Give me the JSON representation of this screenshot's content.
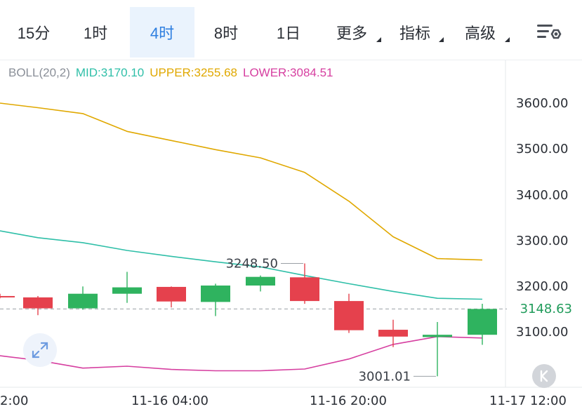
{
  "tabs": [
    {
      "label": "15分",
      "active": false,
      "dropdown": false
    },
    {
      "label": "1时",
      "active": false,
      "dropdown": false
    },
    {
      "label": "4时",
      "active": true,
      "dropdown": false
    },
    {
      "label": "8时",
      "active": false,
      "dropdown": false
    },
    {
      "label": "1日",
      "active": false,
      "dropdown": false
    },
    {
      "label": "更多",
      "active": false,
      "dropdown": true
    },
    {
      "label": "指标",
      "active": false,
      "dropdown": true
    },
    {
      "label": "高级",
      "active": false,
      "dropdown": true
    }
  ],
  "settings_icon": "chart-settings-icon",
  "legend": {
    "name": "BOLL(20,2)",
    "mid": "MID:3170.10",
    "upper": "UPPER:3255.68",
    "lower": "LOWER:3084.51"
  },
  "current_price": "3148.63",
  "expand_icon": "expand-arrows-icon",
  "back_icon": "k-back-icon",
  "colors": {
    "up": "#2fb35f",
    "down": "#e5414d",
    "mid": "#2fbfa8",
    "upper": "#e0a800",
    "lower": "#d63fa0",
    "active_tab": "#2e7fe0"
  },
  "chart_data": {
    "type": "candlestick",
    "title": "",
    "indicator": "BOLL(20,2)",
    "ylim": [
      3010,
      3660
    ],
    "y_ticks": [
      "3600.00",
      "3500.00",
      "3400.00",
      "3300.00",
      "3200.00",
      "3100.00"
    ],
    "x_tick_labels": [
      "2:00",
      "11-16 04:00",
      "11-16 20:00",
      "11-17 12:00"
    ],
    "candles": [
      {
        "open": 3177,
        "high": 3182,
        "low": 3172,
        "close": 3175,
        "direction": "down"
      },
      {
        "open": 3174,
        "high": 3177,
        "low": 3135,
        "close": 3150,
        "direction": "down"
      },
      {
        "open": 3150,
        "high": 3198,
        "low": 3147,
        "close": 3182,
        "direction": "up"
      },
      {
        "open": 3182,
        "high": 3230,
        "low": 3162,
        "close": 3196,
        "direction": "up"
      },
      {
        "open": 3197,
        "high": 3198,
        "low": 3152,
        "close": 3165,
        "direction": "down"
      },
      {
        "open": 3164,
        "high": 3204,
        "low": 3133,
        "close": 3200,
        "direction": "up"
      },
      {
        "open": 3200,
        "high": 3222,
        "low": 3187,
        "close": 3219,
        "direction": "up"
      },
      {
        "open": 3218,
        "high": 3248.5,
        "low": 3160,
        "close": 3166,
        "direction": "down"
      },
      {
        "open": 3166,
        "high": 3182,
        "low": 3096,
        "close": 3102,
        "direction": "down"
      },
      {
        "open": 3103,
        "high": 3125,
        "low": 3065,
        "close": 3088,
        "direction": "down"
      },
      {
        "open": 3087,
        "high": 3120,
        "low": 3001.01,
        "close": 3092,
        "direction": "up"
      },
      {
        "open": 3092,
        "high": 3160,
        "low": 3070,
        "close": 3148.63,
        "direction": "up"
      }
    ],
    "series": [
      {
        "name": "UPPER",
        "values": [
          3600,
          3590,
          3577,
          3538,
          3518,
          3498,
          3480,
          3448,
          3385,
          3307,
          3259,
          3256
        ]
      },
      {
        "name": "MID",
        "values": [
          3320,
          3305,
          3294,
          3277,
          3264,
          3252,
          3241,
          3222,
          3204,
          3187,
          3172,
          3170
        ]
      },
      {
        "name": "LOWER",
        "values": [
          3046,
          3036,
          3019,
          3023,
          3016,
          3013,
          3013,
          3017,
          3039,
          3071,
          3088,
          3085
        ]
      }
    ],
    "annotations": [
      {
        "text": "3248.50",
        "value": 3248.5,
        "candle_index": 7
      },
      {
        "text": "3001.01",
        "value": 3001.01,
        "candle_index": 10
      }
    ],
    "current_price_line": 3148.63,
    "grid": false
  }
}
